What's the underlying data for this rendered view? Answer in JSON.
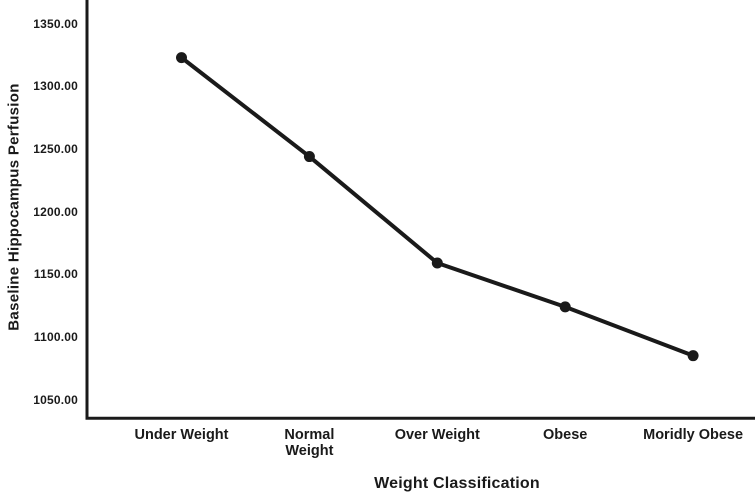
{
  "chart_data": {
    "type": "line",
    "title": "",
    "xlabel": "Weight Classification",
    "ylabel": "Baseline Hippocampus Perfusion",
    "categories": [
      "Under Weight",
      "Normal\nWeight",
      "Over Weight",
      "Obese",
      "Moridly Obese"
    ],
    "values": [
      1323,
      1244,
      1159,
      1124,
      1085
    ],
    "ytick_labels": [
      "1350.00",
      "1300.00",
      "1250.00",
      "1200.00",
      "1150.00",
      "1100.00",
      "1050.00"
    ],
    "ytick_values": [
      1350,
      1300,
      1250,
      1200,
      1150,
      1100,
      1050
    ],
    "ylim": [
      1035,
      1369
    ],
    "grid": false,
    "legend": null,
    "marker": "filled-circle",
    "line_color": "#1a1a1a",
    "axis_color": "#1a1a1a",
    "background_color": "#ffffff"
  }
}
